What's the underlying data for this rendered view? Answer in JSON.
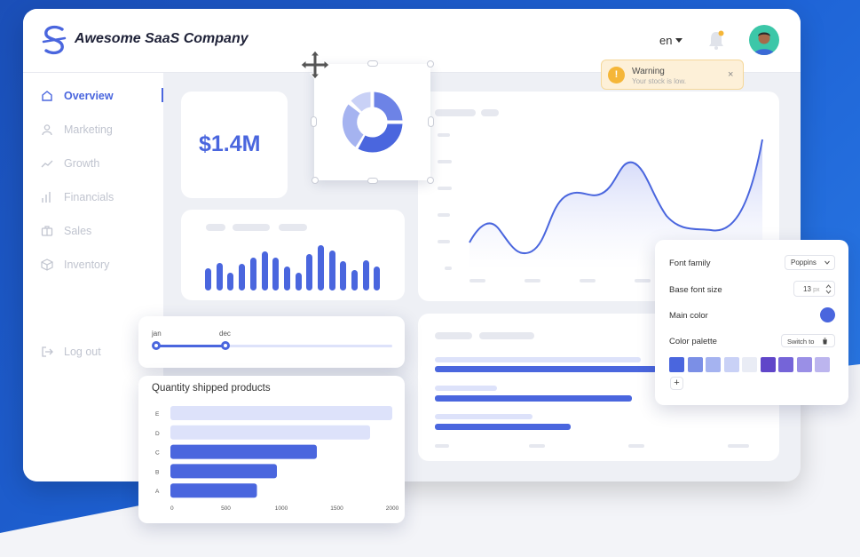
{
  "app": {
    "brand": "Awesome SaaS Company",
    "language": "en"
  },
  "sidebar": {
    "items": [
      {
        "label": "Overview",
        "icon": "home-icon",
        "active": true
      },
      {
        "label": "Marketing",
        "icon": "user-icon",
        "active": false
      },
      {
        "label": "Growth",
        "icon": "trend-icon",
        "active": false
      },
      {
        "label": "Financials",
        "icon": "bar-chart-icon",
        "active": false
      },
      {
        "label": "Sales",
        "icon": "briefcase-icon",
        "active": false
      },
      {
        "label": "Inventory",
        "icon": "box-icon",
        "active": false
      }
    ],
    "logout": "Log out"
  },
  "kpi": {
    "value": "$1.4M"
  },
  "warning": {
    "title": "Warning",
    "message": "Your stock is low.",
    "close": "×",
    "icon": "!"
  },
  "slider": {
    "start": "jan",
    "end": "dec",
    "start_fraction": 0.0,
    "end_fraction": 0.29
  },
  "quantity_chart": {
    "title": "Quantity shipped products",
    "type": "bar",
    "categories": [
      "E",
      "D",
      "C",
      "B",
      "A"
    ],
    "values": [
      2000,
      1800,
      1320,
      960,
      780
    ],
    "xticks": [
      "0",
      "500",
      "1000",
      "1500",
      "2000"
    ],
    "xlim": [
      0,
      2000
    ],
    "bar_colors": [
      "#dde2fa",
      "#dde2fa",
      "#4a66de",
      "#4a66de",
      "#4a66de"
    ]
  },
  "settings": {
    "font_family_label": "Font family",
    "font_family_value": "Poppins",
    "base_font_label": "Base font size",
    "base_font_value": "13",
    "base_font_unit": "px",
    "main_color_label": "Main color",
    "main_color": "#4a66de",
    "palette_label": "Color palette",
    "switch_label": "Switch to",
    "add_label": "+",
    "palette": [
      "#4a66de",
      "#7b8fe6",
      "#a5b3f0",
      "#c9d1f6",
      "#e9ecf5",
      "#6046c9",
      "#7564d8",
      "#9a8fe6",
      "#bcb5ee"
    ]
  },
  "colors": {
    "accent": "#4a66de",
    "warning_bg": "#fdf0d8",
    "warning_icon": "#f5b638",
    "bg_blue": "#1e63d6"
  }
}
